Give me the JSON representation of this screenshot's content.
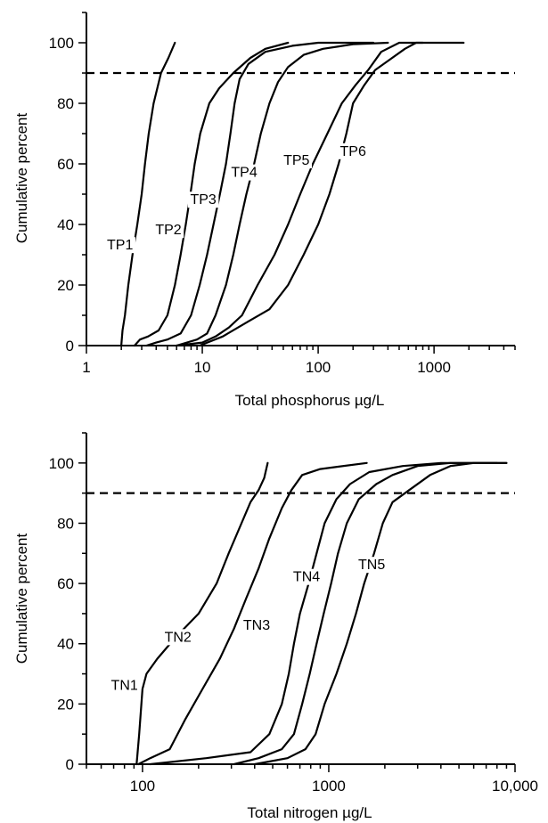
{
  "chart_data": [
    {
      "type": "line",
      "xscale": "log",
      "xlim": [
        1,
        5000
      ],
      "ylim": [
        0,
        110
      ],
      "xlabel": "Total phosphorus µg/L",
      "ylabel": "Cumulative percent",
      "xticks": [
        {
          "value": 1,
          "label": "1"
        },
        {
          "value": 10,
          "label": "10"
        },
        {
          "value": 100,
          "label": "100"
        },
        {
          "value": 1000,
          "label": "1000"
        }
      ],
      "yticks": [
        0,
        20,
        40,
        60,
        80,
        100
      ],
      "reference_line": {
        "y": 90,
        "style": "dashed"
      },
      "grid": false,
      "series": [
        {
          "name": "TP1",
          "label_at": [
            1.95,
            32
          ],
          "points": [
            [
              2.0,
              0
            ],
            [
              2.05,
              5
            ],
            [
              2.15,
              10
            ],
            [
              2.3,
              20
            ],
            [
              2.5,
              30
            ],
            [
              2.75,
              40
            ],
            [
              3.0,
              50
            ],
            [
              3.2,
              60
            ],
            [
              3.45,
              70
            ],
            [
              3.8,
              80
            ],
            [
              4.4,
              90
            ],
            [
              5.1,
              95
            ],
            [
              5.8,
              100
            ]
          ]
        },
        {
          "name": "TP2",
          "label_at": [
            5.1,
            37
          ],
          "points": [
            [
              2.6,
              0
            ],
            [
              2.9,
              2
            ],
            [
              3.4,
              3
            ],
            [
              4.2,
              5
            ],
            [
              5.0,
              10
            ],
            [
              5.8,
              20
            ],
            [
              6.5,
              30
            ],
            [
              7.2,
              40
            ],
            [
              7.9,
              50
            ],
            [
              8.6,
              60
            ],
            [
              9.6,
              70
            ],
            [
              11.5,
              80
            ],
            [
              14.0,
              85
            ],
            [
              18.5,
              90
            ],
            [
              26,
              95
            ],
            [
              35,
              98
            ],
            [
              55,
              100
            ]
          ]
        },
        {
          "name": "TP3",
          "label_at": [
            10.2,
            47
          ],
          "points": [
            [
              3.3,
              0
            ],
            [
              4.0,
              1
            ],
            [
              5.0,
              2
            ],
            [
              6.5,
              4
            ],
            [
              8.0,
              10
            ],
            [
              9.5,
              20
            ],
            [
              11.0,
              30
            ],
            [
              12.5,
              40
            ],
            [
              14.2,
              50
            ],
            [
              16.0,
              60
            ],
            [
              17.5,
              70
            ],
            [
              19.0,
              80
            ],
            [
              21,
              88
            ],
            [
              25,
              93
            ],
            [
              35,
              97
            ],
            [
              60,
              99
            ],
            [
              100,
              100
            ],
            [
              300,
              100
            ]
          ]
        },
        {
          "name": "TP4",
          "label_at": [
            23,
            56
          ],
          "points": [
            [
              6.0,
              0
            ],
            [
              9.0,
              2
            ],
            [
              11.0,
              4
            ],
            [
              13.0,
              10
            ],
            [
              16.0,
              20
            ],
            [
              18.5,
              30
            ],
            [
              21,
              40
            ],
            [
              24,
              50
            ],
            [
              28,
              60
            ],
            [
              32,
              70
            ],
            [
              38,
              80
            ],
            [
              45,
              87
            ],
            [
              55,
              92
            ],
            [
              75,
              96
            ],
            [
              110,
              98
            ],
            [
              200,
              99.5
            ],
            [
              400,
              100
            ]
          ]
        },
        {
          "name": "TP5",
          "label_at": [
            65,
            60
          ],
          "points": [
            [
              6.0,
              0
            ],
            [
              10,
              1
            ],
            [
              13,
              3
            ],
            [
              17,
              6
            ],
            [
              22,
              10
            ],
            [
              30,
              20
            ],
            [
              42,
              30
            ],
            [
              55,
              40
            ],
            [
              70,
              50
            ],
            [
              90,
              60
            ],
            [
              120,
              70
            ],
            [
              160,
              80
            ],
            [
              210,
              86
            ],
            [
              270,
              91
            ],
            [
              350,
              97
            ],
            [
              500,
              100
            ],
            [
              800,
              100
            ]
          ]
        },
        {
          "name": "TP6",
          "label_at": [
            200,
            63
          ],
          "points": [
            [
              9.5,
              0
            ],
            [
              15,
              3
            ],
            [
              25,
              8
            ],
            [
              38,
              12
            ],
            [
              55,
              20
            ],
            [
              75,
              30
            ],
            [
              100,
              40
            ],
            [
              125,
              50
            ],
            [
              150,
              60
            ],
            [
              175,
              70
            ],
            [
              200,
              80
            ],
            [
              250,
              86
            ],
            [
              310,
              91
            ],
            [
              400,
              94
            ],
            [
              560,
              98
            ],
            [
              700,
              100
            ],
            [
              1000,
              100
            ],
            [
              1800,
              100
            ]
          ]
        }
      ]
    },
    {
      "type": "line",
      "xscale": "log",
      "xlim": [
        50,
        10000
      ],
      "ylim": [
        0,
        110
      ],
      "xlabel": "Total nitrogen µg/L",
      "ylabel": "Cumulative percent",
      "xticks": [
        {
          "value": 100,
          "label": "100"
        },
        {
          "value": 1000,
          "label": "1000"
        },
        {
          "value": 10000,
          "label": "10,000"
        }
      ],
      "yticks": [
        0,
        20,
        40,
        60,
        80,
        100
      ],
      "reference_line": {
        "y": 90,
        "style": "dashed"
      },
      "grid": false,
      "series": [
        {
          "name": "TN1",
          "label_at": [
            80,
            25
          ],
          "points": [
            [
              93,
              0
            ],
            [
              96,
              10
            ],
            [
              100,
              25
            ],
            [
              105,
              30
            ],
            [
              120,
              35
            ],
            [
              150,
              42
            ],
            [
              200,
              50
            ],
            [
              250,
              60
            ],
            [
              290,
              70
            ],
            [
              340,
              80
            ],
            [
              380,
              87
            ],
            [
              420,
              91
            ],
            [
              450,
              95
            ],
            [
              470,
              100
            ]
          ]
        },
        {
          "name": "TN2",
          "label_at": [
            155,
            41
          ],
          "points": [
            [
              95,
              0
            ],
            [
              110,
              2
            ],
            [
              140,
              5
            ],
            [
              170,
              15
            ],
            [
              210,
              25
            ],
            [
              260,
              35
            ],
            [
              310,
              45
            ],
            [
              360,
              55
            ],
            [
              420,
              65
            ],
            [
              480,
              75
            ],
            [
              560,
              85
            ],
            [
              630,
              91
            ],
            [
              720,
              96
            ],
            [
              900,
              98
            ],
            [
              1600,
              100
            ]
          ]
        },
        {
          "name": "TN3",
          "label_at": [
            410,
            45
          ],
          "points": [
            [
              110,
              0
            ],
            [
              220,
              2
            ],
            [
              380,
              4
            ],
            [
              480,
              10
            ],
            [
              560,
              20
            ],
            [
              610,
              30
            ],
            [
              650,
              40
            ],
            [
              700,
              50
            ],
            [
              780,
              60
            ],
            [
              860,
              70
            ],
            [
              950,
              80
            ],
            [
              1100,
              88
            ],
            [
              1300,
              93
            ],
            [
              1650,
              97
            ],
            [
              2500,
              99
            ],
            [
              4000,
              100
            ],
            [
              8000,
              100
            ]
          ]
        },
        {
          "name": "TN4",
          "label_at": [
            760,
            61
          ],
          "points": [
            [
              310,
              0
            ],
            [
              420,
              2
            ],
            [
              560,
              5
            ],
            [
              650,
              10
            ],
            [
              720,
              20
            ],
            [
              790,
              30
            ],
            [
              860,
              40
            ],
            [
              940,
              50
            ],
            [
              1030,
              60
            ],
            [
              1120,
              70
            ],
            [
              1250,
              80
            ],
            [
              1450,
              88
            ],
            [
              1800,
              93
            ],
            [
              2200,
              96
            ],
            [
              3000,
              99
            ],
            [
              4500,
              100
            ],
            [
              9000,
              100
            ]
          ]
        },
        {
          "name": "TN5",
          "label_at": [
            1700,
            65
          ],
          "points": [
            [
              400,
              0
            ],
            [
              600,
              2
            ],
            [
              750,
              5
            ],
            [
              850,
              10
            ],
            [
              950,
              20
            ],
            [
              1100,
              30
            ],
            [
              1250,
              40
            ],
            [
              1400,
              50
            ],
            [
              1550,
              60
            ],
            [
              1750,
              70
            ],
            [
              1950,
              80
            ],
            [
              2200,
              87
            ],
            [
              2700,
              91
            ],
            [
              3500,
              96
            ],
            [
              4500,
              99
            ],
            [
              6000,
              100
            ],
            [
              9000,
              100
            ]
          ]
        }
      ]
    }
  ]
}
